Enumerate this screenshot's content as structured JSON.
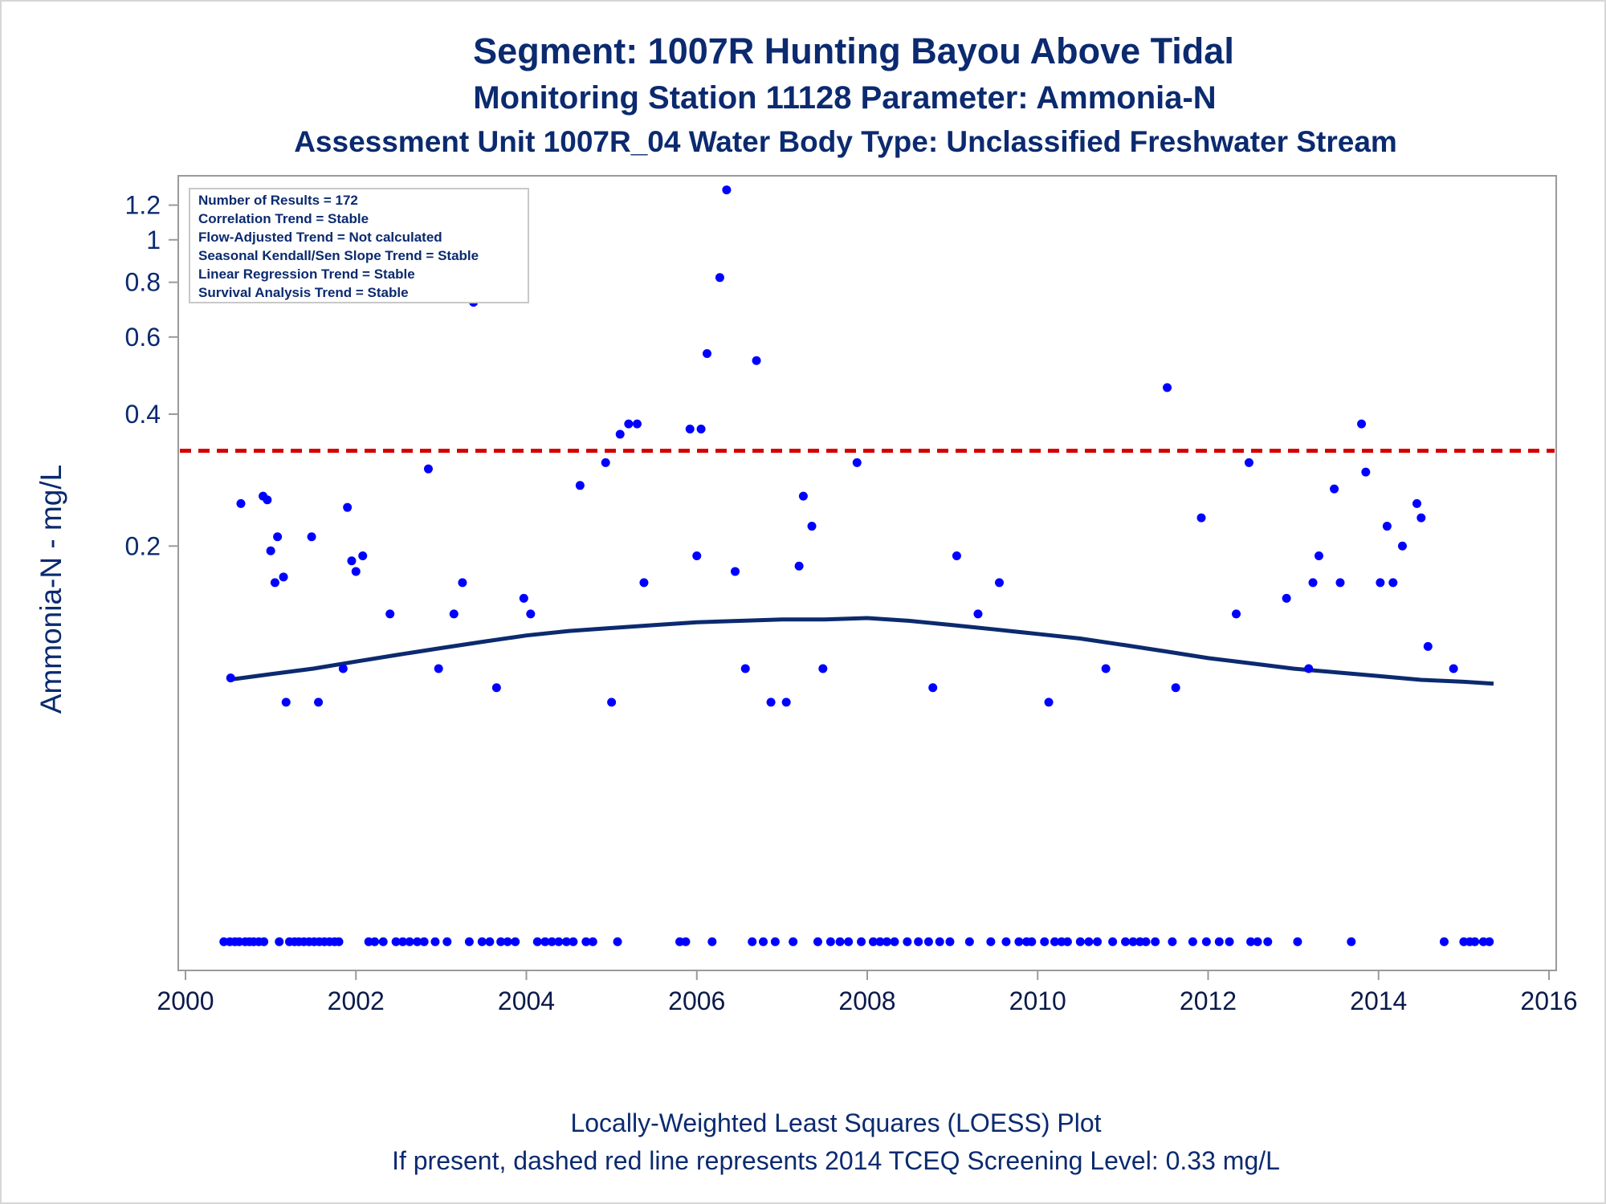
{
  "titles": {
    "line1": "Segment: 1007R  Hunting Bayou Above Tidal",
    "line2": "Monitoring Station 11128 Parameter: Ammonia-N",
    "line3": "Assessment Unit 1007R_04   Water Body Type: Unclassified Freshwater Stream"
  },
  "footnotes": {
    "line1": "Locally-Weighted Least Squares (LOESS) Plot",
    "line2": "If present, dashed red line represents 2014 TCEQ Screening Level: 0.33 mg/L"
  },
  "info_box": [
    "Number of Results = 172",
    "Correlation Trend = Stable",
    "Flow-Adjusted Trend = Not calculated",
    "Seasonal Kendall/Sen Slope Trend = Stable",
    "Linear Regression Trend = Stable",
    "Survival Analysis Trend = Stable"
  ],
  "colors": {
    "points": "#0000ff",
    "loess": "#0b2a6f",
    "screening_line": "#d40000",
    "text": "#0b2a6f",
    "axis": "#9a9a9a"
  },
  "chart_data": {
    "type": "scatter",
    "title": "Segment: 1007R  Hunting Bayou Above Tidal",
    "xlabel": "",
    "ylabel": "Ammonia-N - mg/L",
    "y_scale": "log",
    "xlim": [
      2000,
      2016
    ],
    "ylim": [
      0.0215,
      1.4
    ],
    "x_ticks": [
      2000,
      2002,
      2004,
      2006,
      2008,
      2010,
      2012,
      2014,
      2016
    ],
    "y_ticks": [
      0.2,
      0.4,
      0.6,
      0.8,
      1,
      1.2
    ],
    "y_tick_labels": [
      "0.2",
      "0.4",
      "0.6",
      "0.8",
      "1",
      "1.2"
    ],
    "grid": false,
    "legend": "none",
    "reference_line": {
      "y": 0.33,
      "style": "dashed",
      "label": "2014 TCEQ Screening Level: 0.33 mg/L"
    },
    "series": [
      {
        "kind": "points",
        "x": [
          2000.53,
          2000.65,
          2000.91,
          2000.96,
          2001.0,
          2001.05,
          2001.08,
          2001.15,
          2001.18,
          2001.48,
          2001.56,
          2001.85,
          2001.9,
          2001.95,
          2002.0,
          2002.08,
          2002.4,
          2002.85,
          2002.97,
          2003.15,
          2003.25,
          2003.38,
          2003.65,
          2003.97,
          2004.05,
          2004.63,
          2004.93,
          2005.0,
          2005.1,
          2005.2,
          2005.3,
          2005.38,
          2005.92,
          2006.0,
          2006.05,
          2006.12,
          2006.27,
          2006.35,
          2006.45,
          2006.57,
          2006.7,
          2006.87,
          2007.05,
          2007.2,
          2007.25,
          2007.35,
          2007.48,
          2007.88,
          2008.77,
          2009.05,
          2009.3,
          2009.55,
          2010.13,
          2010.8,
          2011.52,
          2011.62,
          2011.92,
          2012.33,
          2012.48,
          2012.92,
          2013.18,
          2013.23,
          2013.3,
          2013.48,
          2013.55,
          2013.8,
          2013.85,
          2014.02,
          2014.1,
          2014.17,
          2014.28,
          2014.45,
          2014.5,
          2014.58,
          2014.88
        ],
        "y": [
          0.1,
          0.25,
          0.26,
          0.255,
          0.195,
          0.165,
          0.21,
          0.17,
          0.088,
          0.21,
          0.088,
          0.105,
          0.245,
          0.185,
          0.175,
          0.19,
          0.14,
          0.3,
          0.105,
          0.14,
          0.165,
          0.72,
          0.095,
          0.152,
          0.14,
          0.275,
          0.31,
          0.088,
          0.36,
          0.38,
          0.38,
          0.165,
          0.37,
          0.19,
          0.37,
          0.55,
          0.82,
          1.3,
          0.175,
          0.105,
          0.53,
          0.088,
          0.088,
          0.18,
          0.26,
          0.222,
          0.105,
          0.31,
          0.095,
          0.19,
          0.14,
          0.165,
          0.088,
          0.105,
          0.46,
          0.095,
          0.232,
          0.14,
          0.31,
          0.152,
          0.105,
          0.165,
          0.19,
          0.27,
          0.165,
          0.38,
          0.295,
          0.165,
          0.222,
          0.165,
          0.2,
          0.25,
          0.232,
          0.118,
          0.105
        ]
      },
      {
        "kind": "points_low",
        "y": 0.025,
        "x": [
          2000.45,
          2000.52,
          2000.58,
          2000.63,
          2000.7,
          2000.75,
          2000.8,
          2000.86,
          2000.92,
          2001.1,
          2001.22,
          2001.28,
          2001.33,
          2001.39,
          2001.45,
          2001.51,
          2001.57,
          2001.63,
          2001.69,
          2001.75,
          2001.8,
          2002.15,
          2002.22,
          2002.32,
          2002.47,
          2002.55,
          2002.63,
          2002.72,
          2002.8,
          2002.93,
          2003.07,
          2003.33,
          2003.48,
          2003.57,
          2003.7,
          2003.78,
          2003.87,
          2004.13,
          2004.22,
          2004.3,
          2004.38,
          2004.47,
          2004.55,
          2004.7,
          2004.78,
          2005.07,
          2005.8,
          2005.87,
          2006.18,
          2006.65,
          2006.78,
          2006.92,
          2007.13,
          2007.42,
          2007.57,
          2007.68,
          2007.78,
          2007.93,
          2008.07,
          2008.15,
          2008.23,
          2008.32,
          2008.47,
          2008.6,
          2008.72,
          2008.85,
          2008.97,
          2009.2,
          2009.45,
          2009.63,
          2009.78,
          2009.87,
          2009.93,
          2010.08,
          2010.2,
          2010.28,
          2010.35,
          2010.5,
          2010.6,
          2010.7,
          2010.88,
          2011.03,
          2011.12,
          2011.2,
          2011.27,
          2011.38,
          2011.58,
          2011.82,
          2011.98,
          2012.13,
          2012.25,
          2012.5,
          2012.58,
          2012.7,
          2013.05,
          2013.68,
          2014.77,
          2015.0,
          2015.07,
          2015.13,
          2015.23,
          2015.3
        ]
      },
      {
        "kind": "loess",
        "x": [
          2000.5,
          2001.0,
          2001.5,
          2002.0,
          2002.5,
          2003.0,
          2003.5,
          2004.0,
          2004.5,
          2005.0,
          2005.5,
          2006.0,
          2006.5,
          2007.0,
          2007.5,
          2008.0,
          2008.5,
          2009.0,
          2009.5,
          2010.0,
          2010.5,
          2011.0,
          2011.5,
          2012.0,
          2012.5,
          2013.0,
          2013.5,
          2014.0,
          2014.5,
          2015.0,
          2015.35
        ],
        "y": [
          0.099,
          0.102,
          0.105,
          0.109,
          0.113,
          0.117,
          0.121,
          0.125,
          0.128,
          0.13,
          0.132,
          0.134,
          0.135,
          0.136,
          0.136,
          0.137,
          0.135,
          0.132,
          0.129,
          0.126,
          0.123,
          0.119,
          0.115,
          0.111,
          0.108,
          0.105,
          0.103,
          0.101,
          0.099,
          0.098,
          0.097
        ]
      }
    ]
  }
}
